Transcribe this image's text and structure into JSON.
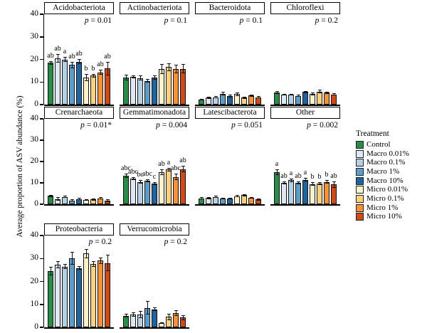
{
  "chart_data": {
    "type": "bar",
    "title": "",
    "ylabel": "Average proportion of ASV abundance (%)",
    "xlabel": "",
    "ylim": [
      0,
      40
    ],
    "yticks": [
      0,
      10,
      20,
      30,
      40
    ],
    "grid": false,
    "legend": {
      "title": "Treatment",
      "position": "right"
    },
    "series": [
      {
        "name": "Control",
        "color": "#2a8c49"
      },
      {
        "name": "Macro 0.01%",
        "color": "#dde8f3"
      },
      {
        "name": "Macro 0.1%",
        "color": "#b5cfe3"
      },
      {
        "name": "Macro 1%",
        "color": "#5e9dc8"
      },
      {
        "name": "Macro 10%",
        "color": "#20639e"
      },
      {
        "name": "Micro 0.01%",
        "color": "#fbf2cb"
      },
      {
        "name": "Micro 0.1%",
        "color": "#fcd17f"
      },
      {
        "name": "Micro 1%",
        "color": "#f59136"
      },
      {
        "name": "Micro 10%",
        "color": "#cf4a1b"
      }
    ],
    "facets": [
      {
        "title": "Acidobacteriota",
        "p_label": "p = 0.01",
        "values": [
          18.5,
          20.5,
          20.0,
          17.5,
          19.0,
          12.0,
          12.8,
          14.3,
          16.0
        ],
        "errors": [
          0.8,
          2.0,
          1.0,
          1.5,
          1.2,
          1.5,
          0.7,
          1.0,
          3.0
        ],
        "letters": [
          "ab",
          "ab",
          "a",
          "ab",
          "ab",
          "b",
          "b",
          "ab",
          "ab"
        ]
      },
      {
        "title": "Actinobacteriota",
        "p_label": "p = 0.1",
        "values": [
          12.0,
          12.2,
          11.8,
          10.5,
          12.0,
          15.8,
          16.6,
          15.7,
          15.8
        ],
        "errors": [
          1.2,
          0.7,
          1.0,
          0.8,
          1.0,
          2.3,
          1.8,
          1.8,
          2.0
        ],
        "letters": null
      },
      {
        "title": "Bacteroidota",
        "p_label": "p = 0.1",
        "values": [
          2.3,
          3.0,
          3.2,
          4.8,
          3.8,
          4.7,
          3.0,
          4.0,
          3.3
        ],
        "errors": [
          0.3,
          0.4,
          0.5,
          0.8,
          0.6,
          0.8,
          0.4,
          0.5,
          0.5
        ],
        "letters": null
      },
      {
        "title": "Chloroflexi",
        "p_label": "p = 0.2",
        "values": [
          5.3,
          4.3,
          4.4,
          3.9,
          5.6,
          4.7,
          5.7,
          5.2,
          4.5
        ],
        "errors": [
          0.7,
          0.3,
          0.3,
          0.4,
          0.5,
          0.5,
          0.8,
          0.5,
          0.4
        ],
        "letters": null
      },
      {
        "title": "Crenarchaeota",
        "p_label": "p = 0.01*",
        "values": [
          4.0,
          2.5,
          3.4,
          1.8,
          2.4,
          2.0,
          2.2,
          2.8,
          1.8
        ],
        "errors": [
          0.5,
          0.7,
          0.5,
          0.4,
          0.5,
          0.4,
          0.4,
          0.5,
          0.7
        ],
        "letters": null
      },
      {
        "title": "Gemmatimonadota",
        "p_label": "p = 0.004",
        "values": [
          13.5,
          12.0,
          10.5,
          11.0,
          9.7,
          15.0,
          16.2,
          12.8,
          16.5
        ],
        "errors": [
          1.0,
          0.8,
          0.7,
          0.8,
          0.8,
          1.2,
          0.8,
          1.5,
          1.5
        ],
        "letters": [
          "abc",
          "abc",
          "bc",
          "abc",
          "c",
          "ab",
          "a",
          "abc",
          "ab"
        ]
      },
      {
        "title": "Latescibacterota",
        "p_label": "p = 0.051",
        "values": [
          2.8,
          3.0,
          3.5,
          2.7,
          2.7,
          3.8,
          4.2,
          3.0,
          2.2
        ],
        "errors": [
          0.4,
          0.5,
          0.6,
          0.4,
          0.4,
          0.5,
          0.6,
          0.4,
          0.4
        ],
        "letters": null
      },
      {
        "title": "Other",
        "p_label": "p = 0.002",
        "values": [
          15.0,
          10.0,
          11.2,
          10.0,
          11.5,
          9.5,
          9.6,
          10.5,
          9.2
        ],
        "errors": [
          1.2,
          0.8,
          0.8,
          0.8,
          0.8,
          0.8,
          0.6,
          0.8,
          1.5
        ],
        "letters": [
          "a",
          "ab",
          "a",
          "ab",
          "a",
          "b",
          "b",
          "b",
          "ab"
        ]
      },
      {
        "title": "Proteobacteria",
        "p_label": "p = 0.2",
        "values": [
          24.5,
          27.2,
          26.5,
          30.2,
          25.8,
          32.2,
          27.6,
          29.0,
          28.0
        ],
        "errors": [
          2.0,
          1.5,
          1.0,
          2.8,
          0.8,
          2.0,
          1.2,
          1.5,
          3.5
        ],
        "letters": null
      },
      {
        "title": "Verrucomicrobia",
        "p_label": "p = 0.2",
        "values": [
          5.0,
          5.6,
          5.5,
          8.5,
          7.9,
          1.8,
          4.5,
          6.2,
          4.2
        ],
        "errors": [
          0.8,
          1.0,
          1.5,
          3.0,
          0.8,
          0.3,
          1.5,
          1.3,
          1.2
        ],
        "letters": null
      }
    ],
    "facet_rows": [
      [
        0,
        1,
        2,
        3
      ],
      [
        4,
        5,
        6,
        7
      ],
      [
        8,
        9
      ]
    ]
  }
}
